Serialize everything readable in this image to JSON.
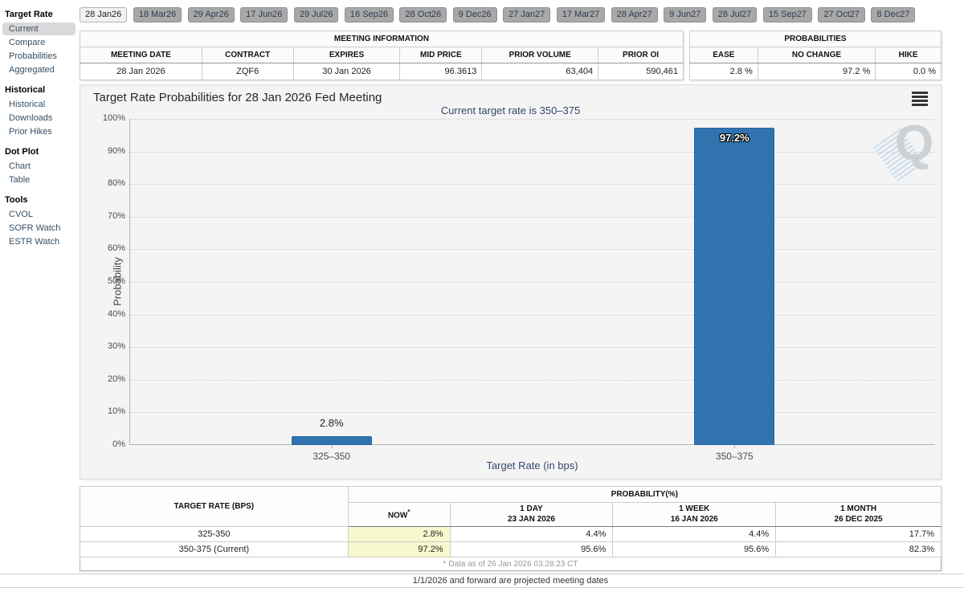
{
  "sidebar": {
    "sections": [
      {
        "header": "Target Rate",
        "items": [
          {
            "label": "Current"
          },
          {
            "label": "Compare"
          },
          {
            "label": "Probabilities"
          },
          {
            "label": "Aggregated"
          }
        ]
      },
      {
        "header": "Historical",
        "items": [
          {
            "label": "Historical"
          },
          {
            "label": "Downloads"
          },
          {
            "label": "Prior Hikes"
          }
        ]
      },
      {
        "header": "Dot Plot",
        "items": [
          {
            "label": "Chart"
          },
          {
            "label": "Table"
          }
        ]
      },
      {
        "header": "Tools",
        "items": [
          {
            "label": "CVOL"
          },
          {
            "label": "SOFR Watch"
          },
          {
            "label": "ESTR Watch"
          }
        ]
      }
    ],
    "selected_item": "Current"
  },
  "tabs": [
    "28 Jan26",
    "18 Mar26",
    "29 Apr26",
    "17 Jun26",
    "29 Jul26",
    "16 Sep26",
    "28 Oct26",
    "9 Dec26",
    "27 Jan27",
    "17 Mar27",
    "28 Apr27",
    "9 Jun27",
    "28 Jul27",
    "15 Sep27",
    "27 Oct27",
    "8 Dec27"
  ],
  "selected_tab": "28 Jan26",
  "meeting_information": {
    "title": "MEETING INFORMATION",
    "columns": [
      "MEETING DATE",
      "CONTRACT",
      "EXPIRES",
      "MID PRICE",
      "PRIOR VOLUME",
      "PRIOR OI"
    ],
    "values": [
      "28 Jan 2026",
      "ZQF6",
      "30 Jan 2026",
      "96.3613",
      "63,404",
      "590,461"
    ]
  },
  "probabilities_summary": {
    "title": "PROBABILITIES",
    "columns": [
      "EASE",
      "NO CHANGE",
      "HIKE"
    ],
    "values": [
      "2.8 %",
      "97.2 %",
      "0.0 %"
    ]
  },
  "chart": {
    "title": "Target Rate Probabilities for 28 Jan 2026 Fed Meeting",
    "subtitle": "Current target rate is 350–375",
    "menu_icon": "hamburger-icon",
    "watermark": "Q"
  },
  "chart_data": {
    "type": "bar",
    "title": "Target Rate Probabilities for 28 Jan 2026 Fed Meeting",
    "subtitle": "Current target rate is 350–375",
    "categories": [
      "325–350",
      "350–375"
    ],
    "values": [
      2.8,
      97.2
    ],
    "labels": [
      "2.8%",
      "97.2%"
    ],
    "xlabel": "Target Rate (in bps)",
    "ylabel": "Probability",
    "ylim": [
      0,
      100
    ],
    "y_ticks": [
      "0%",
      "10%",
      "20%",
      "30%",
      "40%",
      "50%",
      "60%",
      "70%",
      "80%",
      "90%",
      "100%"
    ],
    "grid": "dotted horizontal",
    "bar_color": "#3173af"
  },
  "bottom_table": {
    "col1_header": "TARGET RATE (BPS)",
    "group_header": "PROBABILITY(%)",
    "columns": [
      {
        "label": "NOW",
        "sup": "*"
      },
      {
        "label": "1 DAY",
        "sub": "23 JAN 2026"
      },
      {
        "label": "1 WEEK",
        "sub": "16 JAN 2026"
      },
      {
        "label": "1 MONTH",
        "sub": "26 DEC 2025"
      }
    ],
    "rows": [
      {
        "rate": "325-350",
        "now": "2.8%",
        "day": "4.4%",
        "week": "4.4%",
        "month": "17.7%"
      },
      {
        "rate": "350-375 (Current)",
        "now": "97.2%",
        "day": "95.6%",
        "week": "95.6%",
        "month": "82.3%"
      }
    ],
    "footnote": "* Data as of 26 Jan 2026 03:28:23 CT"
  },
  "footer": "1/1/2026 and forward are projected meeting dates"
}
